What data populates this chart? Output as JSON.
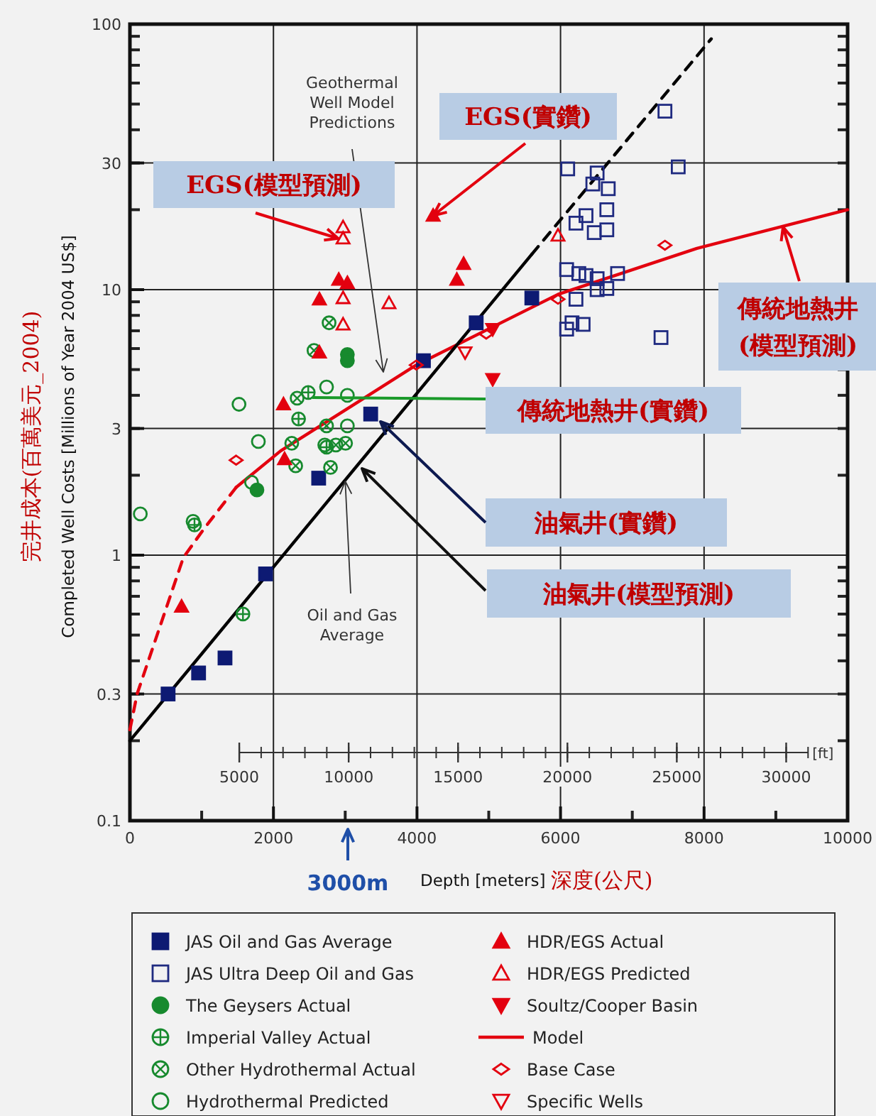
{
  "chart_data": {
    "type": "scatter",
    "xlabel": "Depth [meters]",
    "ylabel": "Completed Well Costs [Millions of Year 2004 US$]",
    "x2label": "[ft]",
    "xlim": [
      0,
      10000
    ],
    "xticks": [
      0,
      2000,
      4000,
      6000,
      8000,
      10000
    ],
    "x2lim": [
      0,
      32808
    ],
    "x2ticks": [
      5000,
      10000,
      15000,
      20000,
      25000,
      30000
    ],
    "ylim": [
      0.1,
      100
    ],
    "yticks": [
      0.1,
      0.3,
      1,
      3,
      10,
      30,
      100
    ],
    "log": "y",
    "grid": true,
    "legend": "bottom",
    "series": [
      {
        "name": "JAS Oil and Gas Average",
        "type": "scatter",
        "marker": "square",
        "color": "#0d1a73",
        "x": [
          532,
          957,
          1325,
          1890,
          2630,
          3355,
          4090,
          4825,
          5600
        ],
        "values": [
          0.3,
          0.36,
          0.41,
          0.85,
          1.95,
          3.4,
          5.4,
          7.5,
          9.3
        ]
      },
      {
        "name": "JAS Ultra Deep Oil and Gas",
        "type": "scatter",
        "marker": "square-open",
        "color": "#1f2a80",
        "x": [
          7455,
          7640,
          6100,
          6510,
          6450,
          6665,
          6645,
          6355,
          6215,
          6645,
          6470,
          6085,
          6255,
          6355,
          6510,
          6795,
          6645,
          6510,
          6215,
          6160,
          6315,
          6085,
          7400
        ],
        "values": [
          47,
          29,
          28.5,
          27.5,
          25,
          24,
          20,
          19,
          17.8,
          16.8,
          16.4,
          11.9,
          11.5,
          11.3,
          11,
          11.5,
          10.1,
          10,
          9.2,
          7.5,
          7.4,
          7.1,
          6.6
        ]
      },
      {
        "name": "The Geysers Actual",
        "type": "scatter",
        "marker": "circle",
        "color": "#178a2e",
        "x": [
          3030,
          3030,
          1770
        ],
        "values": [
          5.7,
          5.4,
          1.76
        ]
      },
      {
        "name": "Imperial Valley Actual",
        "type": "scatter",
        "marker": "circle-cross-open",
        "color": "#178a2e",
        "x": [
          1575,
          2485,
          2350,
          900,
          2740
        ],
        "values": [
          0.6,
          4.1,
          3.26,
          1.3,
          2.55
        ]
      },
      {
        "name": "Other Hydrothermal Actual",
        "type": "scatter",
        "marker": "circle-x-open",
        "color": "#178a2e",
        "x": [
          2775,
          2565,
          2330,
          2740,
          2255,
          2870,
          3005,
          2310,
          2795
        ],
        "values": [
          7.5,
          5.9,
          3.9,
          3.07,
          2.64,
          2.6,
          2.64,
          2.17,
          2.14
        ]
      },
      {
        "name": "Hydrothermal Predicted",
        "type": "scatter",
        "marker": "circle-open",
        "color": "#178a2e",
        "x": [
          1520,
          1790,
          2740,
          3030,
          3030,
          2715,
          145,
          880,
          1695
        ],
        "values": [
          3.7,
          2.68,
          4.3,
          4.0,
          3.07,
          2.6,
          1.43,
          1.34,
          1.88
        ]
      },
      {
        "name": "HDR/EGS Actual",
        "type": "scatter",
        "marker": "triangle-up",
        "color": "#e3000f",
        "x": [
          2640,
          2910,
          3030,
          2640,
          2140,
          4225,
          4650,
          4555,
          2155,
          720
        ],
        "values": [
          9.2,
          10.9,
          10.6,
          5.8,
          3.7,
          19,
          12.5,
          10.9,
          2.3,
          0.64
        ]
      },
      {
        "name": "HDR/EGS Predicted",
        "type": "scatter",
        "marker": "triangle-up-open",
        "color": "#e3000f",
        "x": [
          2970,
          2970,
          2970,
          2970,
          3610,
          5965
        ],
        "values": [
          17.2,
          15.6,
          9.3,
          7.4,
          8.9,
          16
        ]
      },
      {
        "name": "Soultz/Cooper Basin",
        "type": "scatter",
        "marker": "triangle-down",
        "color": "#e3000f",
        "x": [
          5055,
          5055
        ],
        "values": [
          7.1,
          4.6
        ]
      },
      {
        "name": "Model",
        "type": "line",
        "marker": "none",
        "line_style": "solid",
        "color": "#e3000f",
        "x": [
          1480,
          2100,
          3990,
          5965,
          7900,
          10000
        ],
        "values": [
          1.8,
          2.47,
          5.2,
          9.6,
          14.3,
          20
        ]
      },
      {
        "name": "Base Case",
        "type": "scatter",
        "marker": "diamond-open",
        "color": "#e3000f",
        "x": [
          7455,
          5965,
          4965,
          3990,
          1480
        ],
        "values": [
          14.7,
          9.2,
          6.8,
          5.2,
          2.28
        ]
      },
      {
        "name": "Specific Wells",
        "type": "scatter",
        "marker": "triangle-down-open",
        "color": "#e3000f",
        "x": [
          4670
        ],
        "values": [
          5.8
        ]
      },
      {
        "type": "line",
        "marker": "none",
        "line_style": "dashed",
        "color": "#e3000f",
        "x": [
          0,
          100,
          745,
          1035,
          1480
        ],
        "values": [
          0.22,
          0.3,
          0.98,
          1.26,
          1.8
        ]
      },
      {
        "type": "line",
        "marker": "none",
        "line_style": "solid",
        "color": "#000000",
        "x": [
          0,
          5600
        ],
        "values": [
          0.2,
          13.6
        ]
      },
      {
        "type": "line",
        "marker": "none",
        "line_style": "dashed",
        "color": "#000000",
        "x": [
          5600,
          8100
        ],
        "values": [
          13.6,
          88
        ]
      }
    ],
    "annotations": [
      "Geothermal Well Model Predictions",
      {
        "text": "Oil and Gas Average",
        "x": 3000,
        "y": 1.9
      },
      {
        "text": "EGS(模型預測)",
        "x": 2900,
        "y": 15.6
      },
      {
        "text": "EGS(實鑽)",
        "x": 4225,
        "y": 19
      },
      "傳統地熱井(實鑽)",
      "油氣井(實鑽)",
      "油氣井(模型預測)",
      {
        "text": "傳統地熱井(模型預測)",
        "x": 9100,
        "y": 17.2
      },
      "完井成本(百萬美元_2004)",
      "深度(公尺)",
      "3000m"
    ]
  }
}
